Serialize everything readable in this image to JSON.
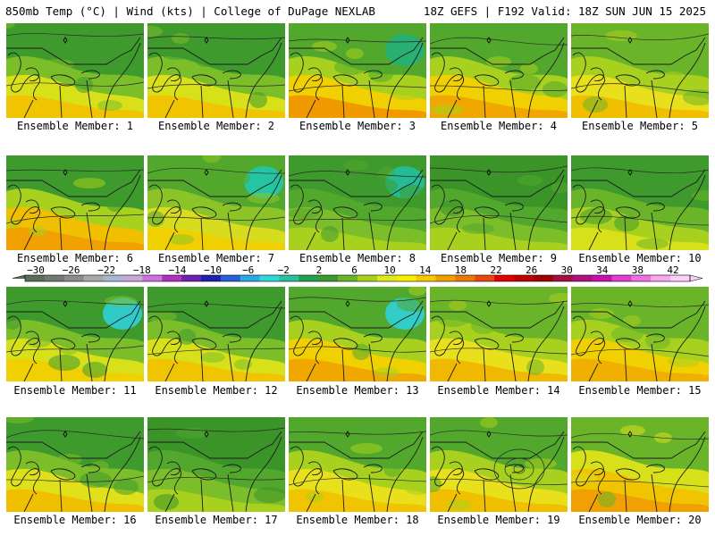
{
  "header": {
    "left": "850mb Temp (°C) | Wind (kts) | College of DuPage NEXLAB",
    "right": "18Z GEFS | F192 Valid: 18Z SUN JUN 15 2025"
  },
  "colorbar": {
    "labels": [
      "−30",
      "−26",
      "−22",
      "−18",
      "−14",
      "−10",
      "−6",
      "−2",
      "2",
      "6",
      "10",
      "14",
      "18",
      "22",
      "26",
      "30",
      "34",
      "38",
      "42"
    ],
    "colors": [
      "#5a6e5a",
      "#727872",
      "#8c8c8c",
      "#a8a8a8",
      "#a8b8d0",
      "#c8a8d8",
      "#d070e0",
      "#b030c0",
      "#7020b0",
      "#2020b0",
      "#2860d8",
      "#2aa8e8",
      "#30d8d8",
      "#28c0a0",
      "#22a050",
      "#3a9a30",
      "#6ab42a",
      "#a8d01e",
      "#e0e81e",
      "#f8f000",
      "#f8c800",
      "#f0a000",
      "#e87808",
      "#e84810",
      "#e00000",
      "#c00000",
      "#a00000",
      "#a01040",
      "#b01080",
      "#c810b0",
      "#e040d0",
      "#f070e0",
      "#f8a8f0",
      "#f8d0f8"
    ]
  },
  "panels": [
    {
      "label": "Ensemble Member: 1"
    },
    {
      "label": "Ensemble Member: 2"
    },
    {
      "label": "Ensemble Member: 3"
    },
    {
      "label": "Ensemble Member: 4"
    },
    {
      "label": "Ensemble Member: 5"
    },
    {
      "label": "Ensemble Member: 6"
    },
    {
      "label": "Ensemble Member: 7"
    },
    {
      "label": "Ensemble Member: 8"
    },
    {
      "label": "Ensemble Member: 9"
    },
    {
      "label": "Ensemble Member: 10"
    },
    {
      "label": "Ensemble Member: 11"
    },
    {
      "label": "Ensemble Member: 12"
    },
    {
      "label": "Ensemble Member: 13"
    },
    {
      "label": "Ensemble Member: 14"
    },
    {
      "label": "Ensemble Member: 15"
    },
    {
      "label": "Ensemble Member: 16"
    },
    {
      "label": "Ensemble Member: 17"
    },
    {
      "label": "Ensemble Member: 18"
    },
    {
      "label": "Ensemble Member: 19"
    },
    {
      "label": "Ensemble Member: 20"
    }
  ]
}
